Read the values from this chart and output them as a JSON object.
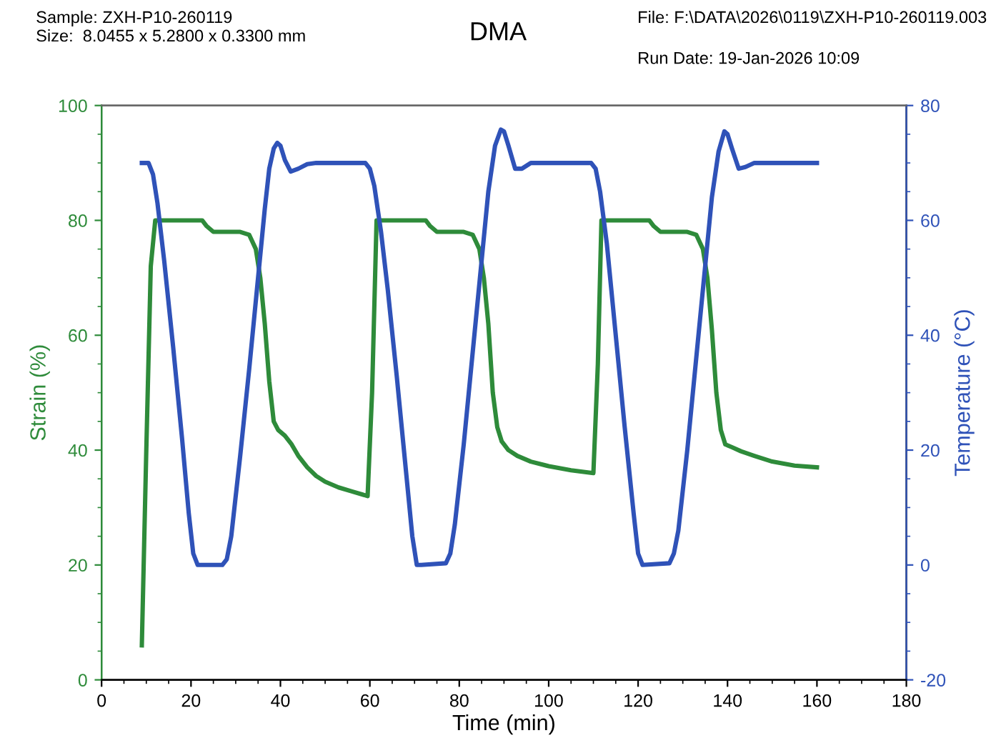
{
  "chart_data": {
    "type": "line",
    "title": "DMA",
    "xlabel": "Time (min)",
    "ylabel": "Strain (%)",
    "y2label": "Temperature (°C)",
    "annotations": [
      "Sample: ZXH-P10-260119",
      "Size:  8.0455 x 5.2800 x 0.3300 mm",
      "File: F:\\DATA\\2026\\0119\\ZXH-P10-260119.003",
      "Run Date: 19-Jan-2026 10:09"
    ],
    "xlim": [
      0,
      180
    ],
    "xticks": [
      0,
      20,
      40,
      60,
      80,
      100,
      120,
      140,
      160,
      180
    ],
    "ylim": [
      0,
      100
    ],
    "yticks": [
      0,
      20,
      40,
      60,
      80,
      100
    ],
    "y2lim": [
      -20,
      80
    ],
    "y2ticks": [
      -20,
      0,
      20,
      40,
      60,
      80
    ],
    "grid": false,
    "marker": "none",
    "line_style": "solid",
    "series": [
      {
        "color": "#2e8b3a",
        "x": [
          9,
          10,
          11,
          12,
          17,
          22.5,
          23.5,
          25,
          31,
          33,
          34.5,
          35.5,
          36.5,
          37.5,
          38.5,
          39.5,
          41,
          42.5,
          44,
          46,
          48,
          50,
          53,
          56,
          59.5,
          60.5,
          61.5,
          66,
          72.5,
          73.5,
          75,
          81,
          83,
          84.5,
          85.5,
          86.5,
          87.5,
          88.5,
          89.5,
          91,
          93,
          96,
          100,
          105,
          110,
          111,
          111.8,
          116,
          122.5,
          123.5,
          125,
          131,
          133,
          134.5,
          135.5,
          136.5,
          137.5,
          138.5,
          139.5,
          141,
          143,
          146,
          150,
          155,
          160
        ],
        "values": [
          6,
          40,
          72,
          80,
          80,
          80,
          79,
          78,
          78,
          77.5,
          75,
          70,
          62,
          52,
          45,
          43.5,
          42.5,
          41,
          39,
          37,
          35.5,
          34.5,
          33.5,
          32.8,
          32,
          50,
          80,
          80,
          80,
          79,
          78,
          78,
          77.5,
          75,
          70,
          62,
          50,
          44,
          41.5,
          40,
          39,
          38,
          37.2,
          36.5,
          36,
          55,
          80,
          80,
          80,
          79,
          78,
          78,
          77.5,
          75,
          70,
          61,
          50,
          43.5,
          41,
          40.5,
          39.8,
          39,
          38,
          37.3,
          37
        ]
      },
      {
        "color": "#2f52b8",
        "axis": "y2",
        "x": [
          9,
          10.5,
          11.5,
          12.5,
          14,
          16,
          18,
          19.5,
          20.5,
          21.5,
          27,
          28,
          29,
          31,
          33,
          35,
          36.5,
          37.5,
          38.5,
          39.3,
          40,
          41,
          42.3,
          44,
          46,
          48,
          59,
          60,
          61,
          62.5,
          64,
          66,
          68,
          69.5,
          70.5,
          71.5,
          77,
          78,
          79,
          81,
          83,
          85,
          86.5,
          88,
          89.3,
          90,
          91,
          92.5,
          94,
          96,
          109.5,
          110.5,
          111.5,
          113,
          115,
          117,
          119,
          120,
          121,
          127,
          128,
          129,
          131,
          133,
          135,
          136.5,
          138,
          139.3,
          140,
          141,
          142.5,
          144,
          146,
          148,
          160
        ],
        "values": [
          70,
          70,
          68,
          63,
          53,
          38,
          22,
          9,
          2,
          0,
          0,
          1,
          5,
          19,
          34,
          50,
          62,
          69,
          72.5,
          73.5,
          73,
          70.5,
          68.5,
          69,
          69.8,
          70,
          70,
          69,
          66,
          58,
          48,
          33,
          17,
          5,
          0,
          0,
          0.3,
          2,
          7,
          21,
          37,
          53,
          65,
          73,
          75.8,
          75.5,
          73,
          69,
          69,
          70,
          70,
          69,
          65,
          56,
          40,
          24,
          9,
          2,
          0,
          0.3,
          2,
          6,
          20,
          36,
          52,
          64,
          72,
          75.5,
          75,
          72.5,
          69,
          69.3,
          70,
          70,
          70
        ]
      }
    ]
  }
}
